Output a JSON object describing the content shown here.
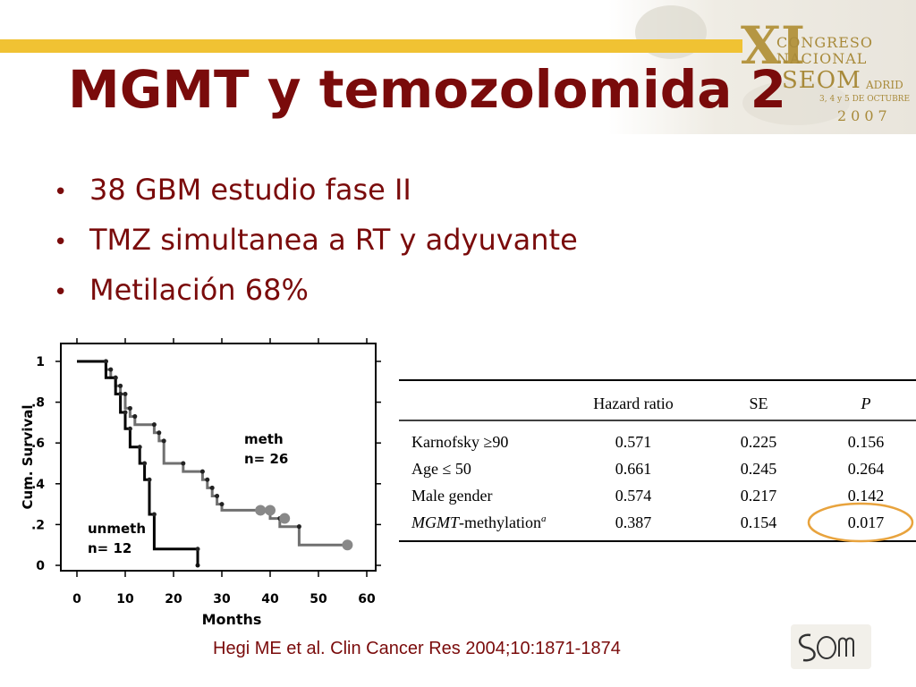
{
  "title": "MGMT y temozolomida 2",
  "bullets": [
    "38 GBM estudio fase II",
    "TMZ simultanea a RT y adyuvante",
    "Metilación 68%"
  ],
  "bullet_glyph": "•",
  "congress": {
    "numeral": "XI",
    "line1": "CONGRESO",
    "line2": "NACIONAL",
    "brand": "SEOM",
    "city": "ADRID",
    "dates": "3, 4 y 5 DE OCTUBRE",
    "year": "2007"
  },
  "colors": {
    "title": "#7a0b0b",
    "rule": "#f0c233",
    "highlight_ring": "#e8a33d",
    "meth_line": "#707070",
    "unmeth_line": "#000000"
  },
  "chart_data": {
    "type": "line",
    "xlabel": "Months",
    "ylabel": "Cum. Survival",
    "xlim": [
      0,
      60
    ],
    "ylim": [
      0,
      1
    ],
    "x_ticks": [
      0,
      10,
      20,
      30,
      40,
      50,
      60
    ],
    "y_ticks": [
      0,
      0.2,
      0.4,
      0.6,
      0.8,
      1
    ],
    "y_tick_labels": [
      "0",
      ".2",
      ".4",
      ".6",
      ".8",
      "1"
    ],
    "series": [
      {
        "name": "meth",
        "label_line1": "meth",
        "label_line2": "n= 26",
        "steps": [
          [
            0,
            1
          ],
          [
            6,
            1
          ],
          [
            6,
            0.96
          ],
          [
            7,
            0.96
          ],
          [
            7,
            0.92
          ],
          [
            8,
            0.92
          ],
          [
            8,
            0.88
          ],
          [
            9,
            0.88
          ],
          [
            9,
            0.84
          ],
          [
            10,
            0.84
          ],
          [
            10,
            0.77
          ],
          [
            11,
            0.77
          ],
          [
            11,
            0.73
          ],
          [
            12,
            0.73
          ],
          [
            12,
            0.69
          ],
          [
            16,
            0.69
          ],
          [
            16,
            0.65
          ],
          [
            17,
            0.65
          ],
          [
            17,
            0.61
          ],
          [
            18,
            0.61
          ],
          [
            18,
            0.5
          ],
          [
            22,
            0.5
          ],
          [
            22,
            0.46
          ],
          [
            26,
            0.46
          ],
          [
            26,
            0.42
          ],
          [
            27,
            0.42
          ],
          [
            27,
            0.38
          ],
          [
            28,
            0.38
          ],
          [
            28,
            0.34
          ],
          [
            29,
            0.34
          ],
          [
            29,
            0.3
          ],
          [
            30,
            0.3
          ],
          [
            30,
            0.27
          ],
          [
            40,
            0.27
          ],
          [
            40,
            0.23
          ],
          [
            42,
            0.23
          ],
          [
            42,
            0.19
          ],
          [
            46,
            0.19
          ],
          [
            46,
            0.1
          ],
          [
            56,
            0.1
          ]
        ],
        "censored": [
          [
            38,
            0.27
          ],
          [
            40,
            0.27
          ],
          [
            43,
            0.23
          ],
          [
            56,
            0.1
          ]
        ]
      },
      {
        "name": "unmeth",
        "label_line1": "unmeth",
        "label_line2": "n= 12",
        "steps": [
          [
            0,
            1
          ],
          [
            6,
            1
          ],
          [
            6,
            0.92
          ],
          [
            8,
            0.92
          ],
          [
            8,
            0.84
          ],
          [
            9,
            0.84
          ],
          [
            9,
            0.75
          ],
          [
            10,
            0.75
          ],
          [
            10,
            0.67
          ],
          [
            11,
            0.67
          ],
          [
            11,
            0.58
          ],
          [
            13,
            0.58
          ],
          [
            13,
            0.5
          ],
          [
            14,
            0.5
          ],
          [
            14,
            0.42
          ],
          [
            15,
            0.42
          ],
          [
            15,
            0.25
          ],
          [
            16,
            0.25
          ],
          [
            16,
            0.08
          ],
          [
            25,
            0.08
          ],
          [
            25,
            0
          ]
        ],
        "censored": []
      }
    ]
  },
  "table": {
    "headers": [
      "",
      "Hazard ratio",
      "SE",
      "P"
    ],
    "rows": [
      [
        "Karnofsky ≥90",
        "0.571",
        "0.225",
        "0.156"
      ],
      [
        "Age ≤ 50",
        "0.661",
        "0.245",
        "0.264"
      ],
      [
        "Male gender",
        "0.574",
        "0.217",
        "0.142"
      ],
      [
        "MGMT-methylation",
        "0.387",
        "0.154",
        "0.017"
      ]
    ],
    "last_row_italic_part": "MGMT",
    "last_row_rest": "-methylation",
    "last_row_superscript": "a",
    "highlighted_cell": "0.017"
  },
  "citation": "Hegi ME et al. Clin Cancer Res 2004;10:1871-1874",
  "footer_logo_text": "SEOM"
}
